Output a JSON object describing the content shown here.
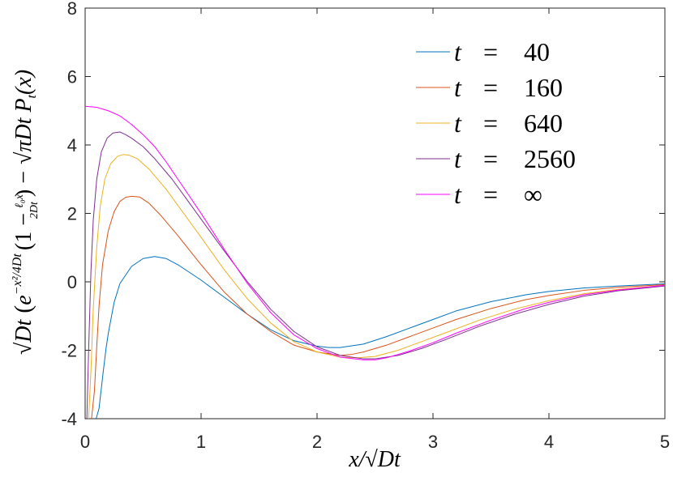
{
  "chart_data": {
    "type": "line",
    "xlabel": "x/√Dt",
    "ylabel_parts": {
      "prefix": "√Dt",
      "exp": "e",
      "sup": "−x²/4Dt",
      "paren_open": "(1 −",
      "frac_num": "ℓ₀x",
      "frac_den": "2Dt",
      "paren_close": ") −",
      "tail": "√πDt P",
      "tail_sub": "t",
      "tail_end": "(x)"
    },
    "xlim": [
      0,
      5
    ],
    "ylim": [
      -4,
      8
    ],
    "xticks": [
      "0",
      "1",
      "2",
      "3",
      "4",
      "5"
    ],
    "yticks": [
      "-4",
      "-2",
      "0",
      "2",
      "4",
      "6",
      "8"
    ],
    "grid": false,
    "legend_position": "top-right",
    "series": [
      {
        "name": "t = 40",
        "var": "t",
        "eq": "=",
        "val": "40",
        "color": "#0072BD",
        "x": [
          0.095,
          0.12,
          0.15,
          0.18,
          0.2,
          0.25,
          0.3,
          0.4,
          0.5,
          0.6,
          0.7,
          0.8,
          1.0,
          1.2,
          1.4,
          1.6,
          1.8,
          2.0,
          2.1,
          2.2,
          2.4,
          2.6,
          2.8,
          3.0,
          3.2,
          3.5,
          3.8,
          4.0,
          4.3,
          4.6,
          5.0
        ],
        "y": [
          -4.0,
          -3.7,
          -2.8,
          -1.95,
          -1.5,
          -0.6,
          -0.05,
          0.45,
          0.68,
          0.74,
          0.68,
          0.5,
          0.05,
          -0.45,
          -0.95,
          -1.4,
          -1.72,
          -1.88,
          -1.92,
          -1.92,
          -1.82,
          -1.6,
          -1.35,
          -1.1,
          -0.85,
          -0.58,
          -0.38,
          -0.28,
          -0.18,
          -0.12,
          -0.06
        ]
      },
      {
        "name": "t = 160",
        "var": "t",
        "eq": "=",
        "val": "160",
        "color": "#D95319",
        "x": [
          0.055,
          0.08,
          0.1,
          0.12,
          0.15,
          0.2,
          0.25,
          0.3,
          0.35,
          0.4,
          0.47,
          0.55,
          0.65,
          0.8,
          1.0,
          1.2,
          1.4,
          1.6,
          1.8,
          2.0,
          2.2,
          2.3,
          2.4,
          2.6,
          2.8,
          3.0,
          3.2,
          3.5,
          3.8,
          4.0,
          4.3,
          4.6,
          5.0
        ],
        "y": [
          -4.0,
          -3.2,
          -1.9,
          -0.7,
          0.5,
          1.5,
          2.05,
          2.35,
          2.47,
          2.5,
          2.48,
          2.3,
          1.95,
          1.35,
          0.5,
          -0.3,
          -0.95,
          -1.45,
          -1.85,
          -2.05,
          -2.15,
          -2.12,
          -2.05,
          -1.85,
          -1.6,
          -1.35,
          -1.1,
          -0.78,
          -0.52,
          -0.4,
          -0.25,
          -0.16,
          -0.08
        ]
      },
      {
        "name": "t = 640",
        "var": "t",
        "eq": "=",
        "val": "640",
        "color": "#EDB120",
        "x": [
          0.03,
          0.05,
          0.07,
          0.1,
          0.13,
          0.17,
          0.22,
          0.28,
          0.33,
          0.38,
          0.45,
          0.55,
          0.7,
          0.85,
          1.0,
          1.2,
          1.4,
          1.6,
          1.8,
          2.0,
          2.2,
          2.35,
          2.5,
          2.7,
          2.9,
          3.1,
          3.4,
          3.7,
          4.0,
          4.3,
          4.6,
          5.0
        ],
        "y": [
          -4.0,
          -2.6,
          -0.8,
          1.0,
          2.2,
          3.0,
          3.45,
          3.67,
          3.72,
          3.7,
          3.6,
          3.3,
          2.7,
          2.0,
          1.3,
          0.35,
          -0.5,
          -1.2,
          -1.75,
          -2.05,
          -2.2,
          -2.22,
          -2.18,
          -2.0,
          -1.75,
          -1.5,
          -1.12,
          -0.8,
          -0.55,
          -0.35,
          -0.22,
          -0.1
        ]
      },
      {
        "name": "t = 2560",
        "var": "t",
        "eq": "=",
        "val": "2560",
        "color": "#7E2F8E",
        "x": [
          0.015,
          0.03,
          0.05,
          0.07,
          0.1,
          0.14,
          0.19,
          0.24,
          0.3,
          0.35,
          0.4,
          0.5,
          0.6,
          0.75,
          0.9,
          1.05,
          1.2,
          1.4,
          1.6,
          1.8,
          2.0,
          2.2,
          2.4,
          2.5,
          2.7,
          2.9,
          3.1,
          3.4,
          3.7,
          4.0,
          4.3,
          4.6,
          5.0
        ],
        "y": [
          -4.0,
          -2.0,
          0.3,
          1.8,
          3.0,
          3.8,
          4.2,
          4.35,
          4.38,
          4.3,
          4.2,
          3.95,
          3.6,
          3.0,
          2.3,
          1.6,
          0.9,
          0.0,
          -0.8,
          -1.45,
          -1.9,
          -2.15,
          -2.25,
          -2.25,
          -2.15,
          -1.95,
          -1.7,
          -1.3,
          -0.95,
          -0.66,
          -0.42,
          -0.26,
          -0.12
        ]
      },
      {
        "name": "t = ∞",
        "var": "t",
        "eq": "=",
        "val": "∞",
        "color": "#FF00FF",
        "x": [
          0,
          0.1,
          0.2,
          0.3,
          0.4,
          0.5,
          0.6,
          0.7,
          0.8,
          0.9,
          1.0,
          1.2,
          1.4,
          1.6,
          1.8,
          2.0,
          2.2,
          2.4,
          2.5,
          2.6,
          2.8,
          3.0,
          3.2,
          3.5,
          3.8,
          4.0,
          4.3,
          4.6,
          5.0
        ],
        "y": [
          5.13,
          5.1,
          5.0,
          4.85,
          4.6,
          4.3,
          3.95,
          3.5,
          3.0,
          2.5,
          2.0,
          0.95,
          -0.05,
          -0.9,
          -1.55,
          -1.95,
          -2.2,
          -2.28,
          -2.28,
          -2.22,
          -2.02,
          -1.78,
          -1.5,
          -1.12,
          -0.78,
          -0.6,
          -0.38,
          -0.24,
          -0.1
        ]
      }
    ]
  }
}
